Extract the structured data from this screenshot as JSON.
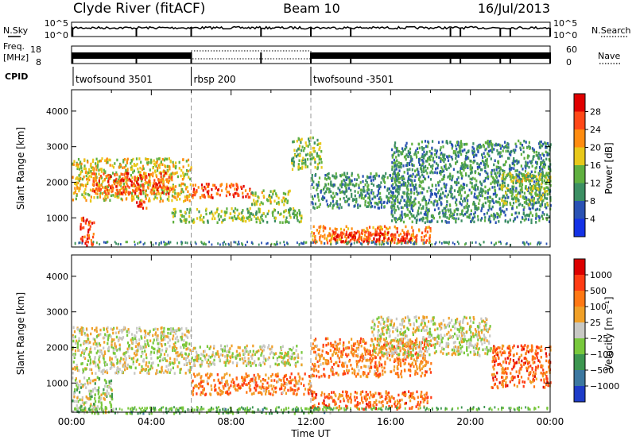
{
  "header": {
    "station": "Clyde River (fitACF)",
    "beam": "Beam 10",
    "date": "16/Jul/2013"
  },
  "top_panel": {
    "nsky_label": "N.Sky",
    "left_ticks": [
      "10^5",
      "10^0"
    ],
    "right_ticks": [
      "10^5",
      "10^0"
    ],
    "nsearch_label": "N.Search",
    "freq_label_1": "Freq.",
    "freq_label_2": "[MHz]",
    "freq_ticks": [
      "18",
      "8"
    ],
    "nave_ticks": [
      "60",
      "0"
    ],
    "nave_label": "Nave",
    "cpid_label": "CPID",
    "programs": [
      {
        "name": "twofsound 3501",
        "start_hr": 0
      },
      {
        "name": "rbsp 200",
        "start_hr": 6
      },
      {
        "name": "twofsound -3501",
        "start_hr": 12
      }
    ],
    "dropout_hours": [
      0.05,
      3.25,
      6.0,
      9.5,
      12.0,
      14.0,
      19.0,
      19.5,
      21.5,
      22.0,
      24.0
    ]
  },
  "x_axis": {
    "label": "Time UT",
    "ticks": [
      "00:00",
      "04:00",
      "08:00",
      "12:00",
      "16:00",
      "20:00",
      "00:00"
    ],
    "range_hr": [
      0,
      24
    ]
  },
  "chart_data": [
    {
      "type": "heatmap",
      "name": "power",
      "ylabel": "Slant Range [km]",
      "ylim": [
        180,
        4600
      ],
      "yticks": [
        "1000",
        "2000",
        "3000",
        "4000"
      ],
      "colorbar_label": "Power [dB]",
      "colorbar_ticks": [
        "4",
        "8",
        "12",
        "16",
        "20",
        "24",
        "28"
      ],
      "colors": [
        "#1432e6",
        "#2a52b4",
        "#3c8f63",
        "#60b040",
        "#e8c81a",
        "#ff8c10",
        "#ff4818",
        "#e00000"
      ],
      "features": [
        {
          "t0": 0.0,
          "t1": 6.0,
          "r0": 1500,
          "r1": 2700,
          "level": 0.55
        },
        {
          "t0": 0.4,
          "t1": 1.1,
          "r0": 250,
          "r1": 1050,
          "level": 0.9
        },
        {
          "t0": 1.0,
          "t1": 5.0,
          "r0": 1700,
          "r1": 2300,
          "level": 0.85
        },
        {
          "t0": 3.0,
          "t1": 3.8,
          "r0": 1300,
          "r1": 1500,
          "level": 0.9
        },
        {
          "t0": 6.0,
          "t1": 9.0,
          "r0": 1600,
          "r1": 2000,
          "level": 0.85
        },
        {
          "t0": 9.0,
          "t1": 11.0,
          "r0": 1400,
          "r1": 1800,
          "level": 0.5
        },
        {
          "t0": 5.0,
          "t1": 11.5,
          "r0": 900,
          "r1": 1300,
          "level": 0.45
        },
        {
          "t0": 11.0,
          "t1": 12.5,
          "r0": 2400,
          "r1": 3300,
          "level": 0.45
        },
        {
          "t0": 12.0,
          "t1": 18.0,
          "r0": 300,
          "r1": 800,
          "level": 0.75
        },
        {
          "t0": 13.0,
          "t1": 17.0,
          "r0": 350,
          "r1": 650,
          "level": 0.95
        },
        {
          "t0": 12.0,
          "t1": 17.0,
          "r0": 1300,
          "r1": 2300,
          "level": 0.3
        },
        {
          "t0": 16.0,
          "t1": 24.0,
          "r0": 900,
          "r1": 3200,
          "level": 0.3
        },
        {
          "t0": 21.5,
          "t1": 24.0,
          "r0": 1400,
          "r1": 2300,
          "level": 0.5
        }
      ]
    },
    {
      "type": "heatmap",
      "name": "velocity",
      "ylabel": "Slant Range [km]",
      "ylim": [
        180,
        4600
      ],
      "yticks": [
        "1000",
        "2000",
        "3000",
        "4000"
      ],
      "colorbar_label": "Velocity [m s⁻¹]",
      "colorbar_ticks": [
        "1000",
        "500",
        "100",
        "25",
        "−25",
        "−100",
        "−500",
        "−1000"
      ],
      "colors": [
        "#1e3cc8",
        "#3c78a0",
        "#3c9650",
        "#78c83c",
        "#c8c8c4",
        "#f0a028",
        "#ff7814",
        "#ff3c14",
        "#dc0000"
      ],
      "features": [
        {
          "t0": 0.0,
          "t1": 6.0,
          "r0": 1300,
          "r1": 2600,
          "level": 0.5
        },
        {
          "t0": 0.0,
          "t1": 2.0,
          "r0": 200,
          "r1": 1200,
          "level": 0.45
        },
        {
          "t0": 6.0,
          "t1": 11.5,
          "r0": 1500,
          "r1": 2100,
          "level": 0.5
        },
        {
          "t0": 6.0,
          "t1": 12.0,
          "r0": 700,
          "r1": 1300,
          "level": 0.72
        },
        {
          "t0": 12.0,
          "t1": 18.0,
          "r0": 300,
          "r1": 800,
          "level": 0.78
        },
        {
          "t0": 12.0,
          "t1": 18.0,
          "r0": 1200,
          "r1": 2300,
          "level": 0.72
        },
        {
          "t0": 15.0,
          "t1": 21.0,
          "r0": 1800,
          "r1": 2900,
          "level": 0.5
        },
        {
          "t0": 21.0,
          "t1": 24.0,
          "r0": 900,
          "r1": 2100,
          "level": 0.8
        },
        {
          "t0": 0.0,
          "t1": 13.0,
          "r0": 180,
          "r1": 320,
          "level": 0.33
        }
      ]
    }
  ]
}
